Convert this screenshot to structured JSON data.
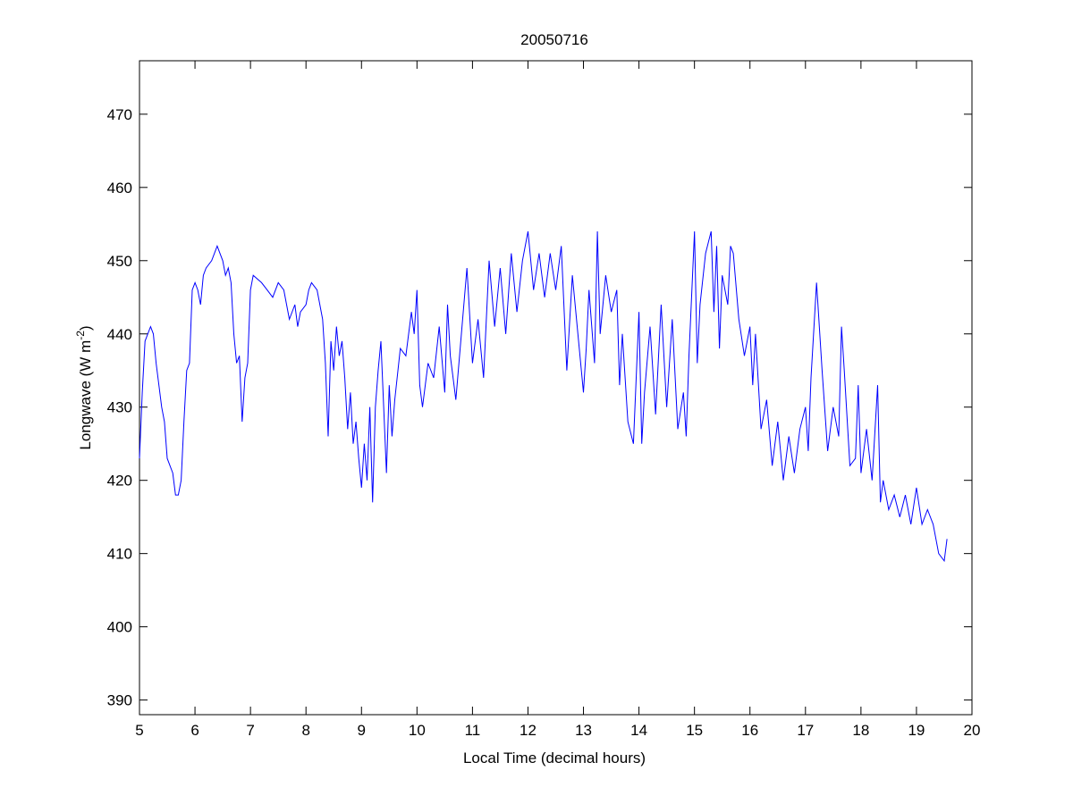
{
  "chart_data": {
    "type": "line",
    "title": "20050716",
    "xlabel": "Local Time (decimal hours)",
    "ylabel": "Longwave (W m",
    "ylabel_exponent": "-2",
    "ylabel_suffix": ")",
    "xlim": [
      5,
      20
    ],
    "ylim": [
      388,
      477.3
    ],
    "xticks": [
      5,
      6,
      7,
      8,
      9,
      10,
      11,
      12,
      13,
      14,
      15,
      16,
      17,
      18,
      19,
      20
    ],
    "yticks": [
      390,
      400,
      410,
      420,
      430,
      440,
      450,
      460,
      470
    ],
    "grid": false,
    "line_color": "#0000ff",
    "series": [
      {
        "name": "Longwave",
        "x": [
          5.0,
          5.05,
          5.1,
          5.2,
          5.25,
          5.3,
          5.4,
          5.45,
          5.5,
          5.6,
          5.65,
          5.7,
          5.75,
          5.8,
          5.85,
          5.9,
          5.95,
          6.0,
          6.05,
          6.1,
          6.15,
          6.2,
          6.3,
          6.4,
          6.5,
          6.55,
          6.6,
          6.65,
          6.7,
          6.75,
          6.8,
          6.85,
          6.9,
          6.95,
          7.0,
          7.05,
          7.2,
          7.3,
          7.4,
          7.5,
          7.6,
          7.65,
          7.7,
          7.8,
          7.85,
          7.9,
          8.0,
          8.05,
          8.1,
          8.2,
          8.3,
          8.35,
          8.4,
          8.45,
          8.5,
          8.55,
          8.6,
          8.65,
          8.7,
          8.75,
          8.8,
          8.85,
          8.9,
          8.95,
          9.0,
          9.05,
          9.1,
          9.15,
          9.2,
          9.25,
          9.3,
          9.35,
          9.4,
          9.45,
          9.5,
          9.55,
          9.6,
          9.7,
          9.8,
          9.9,
          9.95,
          10.0,
          10.05,
          10.1,
          10.2,
          10.3,
          10.4,
          10.5,
          10.55,
          10.6,
          10.7,
          10.8,
          10.9,
          11.0,
          11.1,
          11.2,
          11.3,
          11.4,
          11.5,
          11.6,
          11.7,
          11.8,
          11.9,
          12.0,
          12.1,
          12.2,
          12.3,
          12.4,
          12.5,
          12.6,
          12.7,
          12.8,
          12.9,
          13.0,
          13.05,
          13.1,
          13.2,
          13.25,
          13.3,
          13.4,
          13.5,
          13.6,
          13.65,
          13.7,
          13.8,
          13.9,
          14.0,
          14.05,
          14.1,
          14.2,
          14.3,
          14.4,
          14.5,
          14.6,
          14.7,
          14.8,
          14.85,
          14.9,
          15.0,
          15.05,
          15.1,
          15.2,
          15.3,
          15.35,
          15.4,
          15.45,
          15.5,
          15.6,
          15.65,
          15.7,
          15.8,
          15.9,
          16.0,
          16.05,
          16.1,
          16.2,
          16.3,
          16.4,
          16.5,
          16.6,
          16.7,
          16.8,
          16.9,
          17.0,
          17.05,
          17.1,
          17.2,
          17.3,
          17.4,
          17.5,
          17.6,
          17.65,
          17.7,
          17.8,
          17.9,
          17.95,
          18.0,
          18.1,
          18.2,
          18.3,
          18.35,
          18.4,
          18.5,
          18.6,
          18.7,
          18.8,
          18.9,
          19.0,
          19.1,
          19.2,
          19.3,
          19.4,
          19.5,
          19.55
        ],
        "y": [
          423,
          432,
          439,
          441,
          440,
          436,
          430,
          428,
          423,
          421,
          418,
          418,
          420,
          428,
          435,
          436,
          446,
          447,
          446,
          444,
          448,
          449,
          450,
          452,
          450,
          448,
          449,
          447,
          440,
          436,
          437,
          428,
          434,
          436,
          446,
          448,
          447,
          446,
          445,
          447,
          446,
          444,
          442,
          444,
          441,
          443,
          444,
          446,
          447,
          446,
          442,
          436,
          426,
          439,
          435,
          441,
          437,
          439,
          434,
          427,
          432,
          425,
          428,
          423,
          419,
          425,
          420,
          430,
          417,
          430,
          435,
          439,
          430,
          421,
          433,
          426,
          431,
          438,
          437,
          443,
          440,
          446,
          433,
          430,
          436,
          434,
          441,
          432,
          444,
          437,
          431,
          440,
          449,
          436,
          442,
          434,
          450,
          441,
          449,
          440,
          451,
          443,
          450,
          454,
          446,
          451,
          445,
          451,
          446,
          452,
          435,
          448,
          440,
          432,
          438,
          446,
          436,
          454,
          440,
          448,
          443,
          446,
          433,
          440,
          428,
          425,
          443,
          425,
          432,
          441,
          429,
          444,
          430,
          442,
          427,
          432,
          426,
          437,
          454,
          436,
          444,
          451,
          454,
          443,
          452,
          438,
          448,
          444,
          452,
          451,
          442,
          437,
          441,
          433,
          440,
          427,
          431,
          422,
          428,
          420,
          426,
          421,
          427,
          430,
          424,
          434,
          447,
          435,
          424,
          430,
          426,
          441,
          435,
          422,
          423,
          433,
          421,
          427,
          420,
          433,
          417,
          420,
          416,
          418,
          415,
          418,
          414,
          419,
          414,
          416,
          414,
          410,
          409,
          412
        ]
      }
    ]
  }
}
